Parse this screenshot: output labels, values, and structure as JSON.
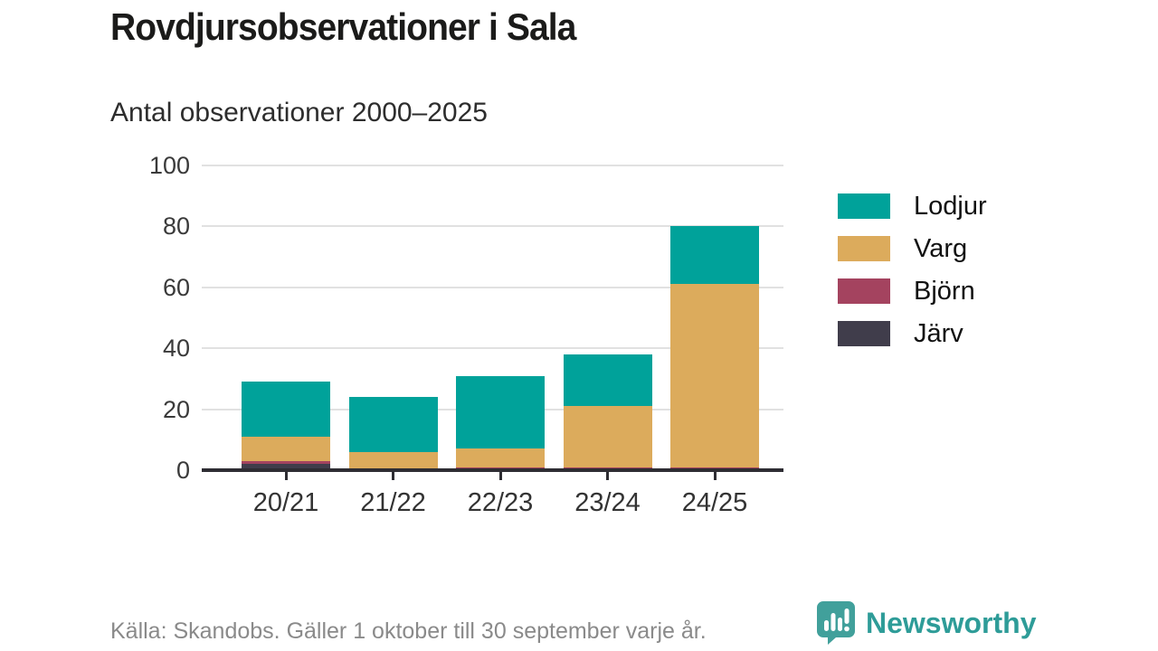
{
  "title": "Rovdjursobservationer i Sala",
  "subtitle": "Antal observationer 2000–2025",
  "footer": {
    "source": "Källa: Skandobs. Gäller 1 oktober till 30 september varje år.",
    "brand": "Newsworthy"
  },
  "colors": {
    "lodjur": "#00a29a",
    "varg": "#dcab5c",
    "bjorn": "#a4435f",
    "jarv": "#403d4b",
    "grid": "#e1e1e1",
    "axis": "#2e2d33",
    "brand_teal": "#2e9c98",
    "brand_icon": "#41a09b"
  },
  "chart_data": {
    "type": "bar",
    "stacked": true,
    "title": "Rovdjursobservationer i Sala",
    "subtitle": "Antal observationer 2000–2025",
    "categories": [
      "20/21",
      "21/22",
      "22/23",
      "23/24",
      "24/25"
    ],
    "series": [
      {
        "name": "Lodjur",
        "color": "#00a29a",
        "values": [
          18,
          18,
          24,
          17,
          19
        ]
      },
      {
        "name": "Varg",
        "color": "#dcab5c",
        "values": [
          8,
          6,
          6,
          20,
          60
        ]
      },
      {
        "name": "Björn",
        "color": "#a4435f",
        "values": [
          1,
          0,
          1,
          1,
          1
        ]
      },
      {
        "name": "Järv",
        "color": "#403d4b",
        "values": [
          2,
          0,
          0,
          0,
          0
        ]
      }
    ],
    "totals": [
      29,
      24,
      31,
      38,
      80
    ],
    "xlabel": "",
    "ylabel": "",
    "ylim": [
      0,
      100
    ],
    "yticks": [
      0,
      20,
      40,
      60,
      80,
      100
    ],
    "grid": "horizontal",
    "legend_position": "right",
    "legend": [
      "Lodjur",
      "Varg",
      "Björn",
      "Järv"
    ]
  }
}
